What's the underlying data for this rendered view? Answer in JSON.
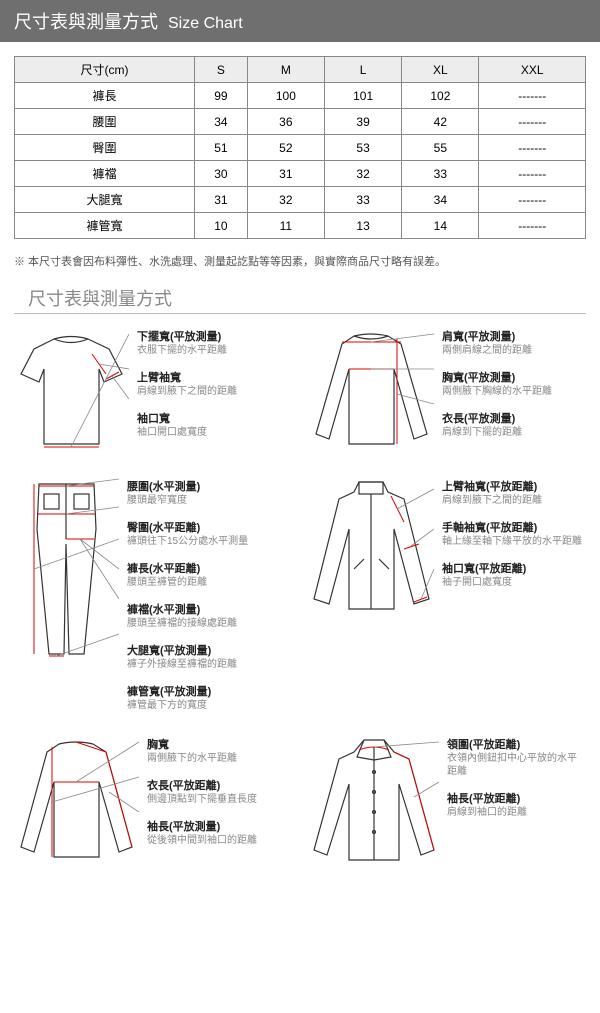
{
  "header": {
    "zh": "尺寸表與測量方式",
    "en": "Size Chart"
  },
  "table": {
    "columns": [
      "尺寸(cm)",
      "S",
      "M",
      "L",
      "XL",
      "XXL"
    ],
    "rows": [
      [
        "褲長",
        "99",
        "100",
        "101",
        "102",
        "-------"
      ],
      [
        "腰圍",
        "34",
        "36",
        "39",
        "42",
        "-------"
      ],
      [
        "臀圍",
        "51",
        "52",
        "53",
        "55",
        "-------"
      ],
      [
        "褲襠",
        "30",
        "31",
        "32",
        "33",
        "-------"
      ],
      [
        "大腿寬",
        "31",
        "32",
        "33",
        "34",
        "-------"
      ],
      [
        "褲管寬",
        "10",
        "11",
        "13",
        "14",
        "-------"
      ]
    ],
    "header_bg": "#ededed",
    "border_color": "#888888"
  },
  "note": "※ 本尺寸表會因布料彈性、水洗處理、測量起訖點等等因素，與實際商品尺寸略有誤差。",
  "section_title": "尺寸表與測量方式",
  "colors": {
    "header_bar": "#6f6f6f",
    "garment_stroke": "#333333",
    "measure_stroke": "#dd0000",
    "leader_stroke": "#888888"
  },
  "diagrams": {
    "tshirt": [
      {
        "t": "下擺寬(平放測量)",
        "d": "衣服下擺的水平距離"
      },
      {
        "t": "上臂袖寬",
        "d": "肩線到腋下之間的距離"
      },
      {
        "t": "袖口寬",
        "d": "袖口開口處寬度"
      }
    ],
    "longsleeve": [
      {
        "t": "肩寬(平放測量)",
        "d": "兩側肩線之間的距離"
      },
      {
        "t": "胸寬(平放測量)",
        "d": "兩側腋下胸線的水平距離"
      },
      {
        "t": "衣長(平放測量)",
        "d": "肩線到下擺的距離"
      }
    ],
    "pants": [
      {
        "t": "腰圍(水平測量)",
        "d": "腰頭最窄寬度"
      },
      {
        "t": "臀圍(水平距離)",
        "d": "褲頭往下15公分處水平測量"
      },
      {
        "t": "褲長(水平距離)",
        "d": "腰頭至褲管的距離"
      },
      {
        "t": "褲襠(水平測量)",
        "d": "腰頭至褲襠的接線處距離"
      },
      {
        "t": "大腿寬(平放測量)",
        "d": "褲子外接線至褲襠的距離"
      },
      {
        "t": "褲管寬(平放測量)",
        "d": "褲管最下方的寬度"
      }
    ],
    "jacket": [
      {
        "t": "上臂袖寬(平放距離)",
        "d": "肩線到腋下之間的距離"
      },
      {
        "t": "手軸袖寬(平放距離)",
        "d": "軸上緣至軸下緣平放的水平距離"
      },
      {
        "t": "袖口寬(平放距離)",
        "d": "袖子開口處寬度"
      }
    ],
    "back": [
      {
        "t": "胸寬",
        "d": "兩側腋下的水平距離"
      },
      {
        "t": "衣長(平放距離)",
        "d": "側邊頂點到下擺垂直長度"
      },
      {
        "t": "袖長(平放測量)",
        "d": "從後領中間到袖口的距離"
      }
    ],
    "collar_shirt": [
      {
        "t": "領圍(平放距離)",
        "d": "衣領內側鈕扣中心平放的水平距離"
      },
      {
        "t": "袖長(平放距離)",
        "d": "肩線到袖口的距離"
      }
    ]
  }
}
